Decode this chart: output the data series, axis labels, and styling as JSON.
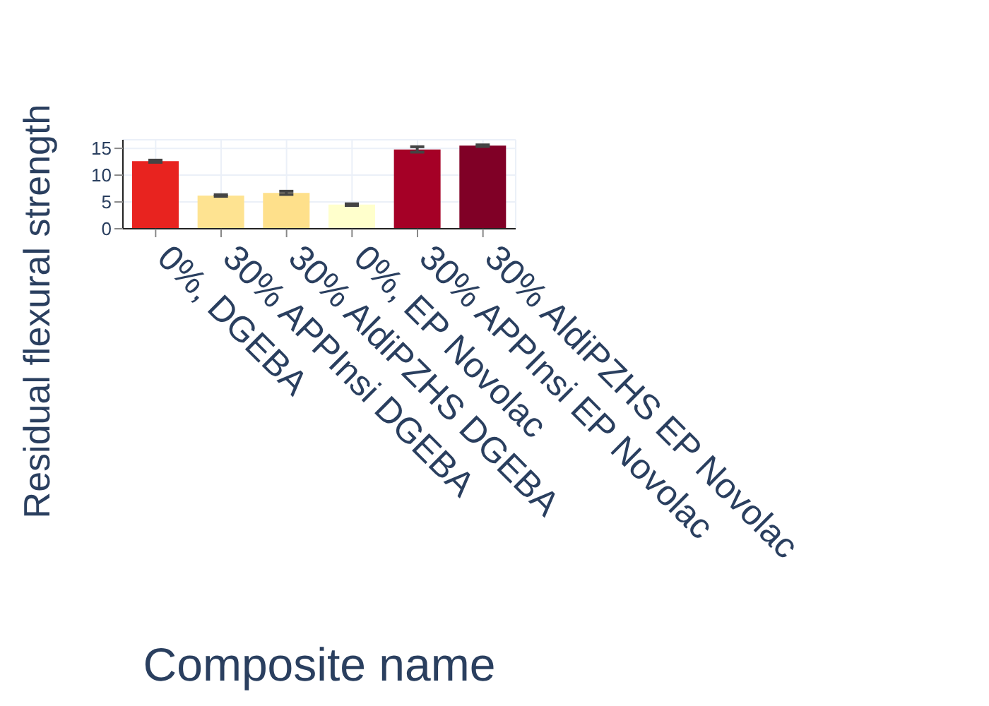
{
  "chart_data": {
    "type": "bar",
    "xlabel": "Composite name",
    "ylabel": "Residual flexural strength",
    "categories": [
      "0%, DGEBA",
      "30% APPInsi DGEBA",
      "30% AldiPZHS DGEBA",
      "0%, EP Novolac",
      "30% APPInsi EP Novolac",
      "30% AldiPZHS EP Novolac"
    ],
    "values": [
      12.6,
      6.2,
      6.7,
      4.5,
      14.8,
      15.5
    ],
    "errors": [
      0.2,
      0.15,
      0.3,
      0.15,
      0.5,
      0.15
    ],
    "colors": [
      "#e8231f",
      "#fee391",
      "#fee08b",
      "#ffffcc",
      "#a50026",
      "#800026"
    ],
    "ylim": [
      0,
      16.6
    ],
    "yticks": [
      0,
      5,
      10,
      15
    ],
    "grid": true
  }
}
